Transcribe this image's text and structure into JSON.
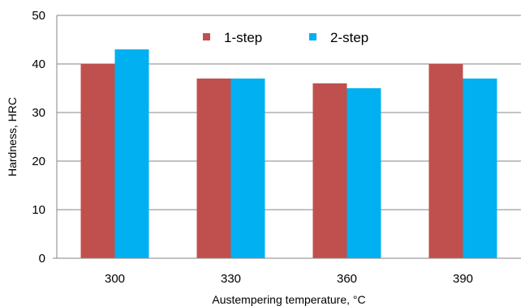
{
  "chart_data": {
    "type": "bar",
    "title": "",
    "xlabel": "Austempering temperature, °C",
    "ylabel": "Hardness, HRC",
    "categories": [
      "300",
      "330",
      "360",
      "390"
    ],
    "series": [
      {
        "name": "1-step",
        "values": [
          40,
          37,
          36,
          40
        ],
        "color": "#c0504d"
      },
      {
        "name": "2-step",
        "values": [
          43,
          37,
          35,
          37
        ],
        "color": "#00b0f0"
      }
    ],
    "ylim": [
      0,
      50
    ],
    "yticks": [
      "0",
      "10",
      "20",
      "30",
      "40",
      "50"
    ],
    "grid": true,
    "legend_position": "top-center"
  }
}
